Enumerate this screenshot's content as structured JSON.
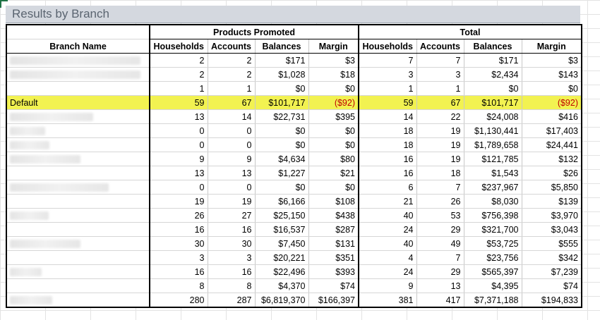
{
  "title": "Results by Branch",
  "colors": {
    "highlight": "#f2f251",
    "negative": "#c00000",
    "title_bar": "#d4d8df",
    "title_text": "#5a6470"
  },
  "group_headers": {
    "promoted": "Products Promoted",
    "total": "Total"
  },
  "column_headers": {
    "branch": "Branch Name",
    "households": "Households",
    "accounts": "Accounts",
    "balances": "Balances",
    "margin": "Margin"
  },
  "rows": [
    {
      "name": "",
      "p_households": "2",
      "p_accounts": "2",
      "p_balances": "$171",
      "p_margin": "$3",
      "t_households": "7",
      "t_accounts": "7",
      "t_balances": "$171",
      "t_margin": "$3"
    },
    {
      "name": "",
      "p_households": "2",
      "p_accounts": "2",
      "p_balances": "$1,028",
      "p_margin": "$18",
      "t_households": "3",
      "t_accounts": "3",
      "t_balances": "$2,434",
      "t_margin": "$143"
    },
    {
      "name": "",
      "p_households": "1",
      "p_accounts": "1",
      "p_balances": "$0",
      "p_margin": "$0",
      "t_households": "1",
      "t_accounts": "1",
      "t_balances": "$0",
      "t_margin": "$0"
    },
    {
      "name": "Default",
      "highlight": true,
      "p_households": "59",
      "p_accounts": "67",
      "p_balances": "$101,717",
      "p_margin": "($92)",
      "p_margin_neg": true,
      "t_households": "59",
      "t_accounts": "67",
      "t_balances": "$101,717",
      "t_margin": "($92)",
      "t_margin_neg": true
    },
    {
      "name": "",
      "p_households": "13",
      "p_accounts": "14",
      "p_balances": "$22,731",
      "p_margin": "$395",
      "t_households": "14",
      "t_accounts": "22",
      "t_balances": "$24,008",
      "t_margin": "$416"
    },
    {
      "name": "",
      "p_households": "0",
      "p_accounts": "0",
      "p_balances": "$0",
      "p_margin": "$0",
      "t_households": "18",
      "t_accounts": "19",
      "t_balances": "$1,130,441",
      "t_margin": "$17,403"
    },
    {
      "name": "",
      "p_households": "0",
      "p_accounts": "0",
      "p_balances": "$0",
      "p_margin": "$0",
      "t_households": "18",
      "t_accounts": "19",
      "t_balances": "$1,789,658",
      "t_margin": "$24,441"
    },
    {
      "name": "",
      "p_households": "9",
      "p_accounts": "9",
      "p_balances": "$4,634",
      "p_margin": "$80",
      "t_households": "16",
      "t_accounts": "19",
      "t_balances": "$121,785",
      "t_margin": "$132"
    },
    {
      "name": "",
      "p_households": "13",
      "p_accounts": "13",
      "p_balances": "$1,227",
      "p_margin": "$21",
      "t_households": "16",
      "t_accounts": "18",
      "t_balances": "$1,543",
      "t_margin": "$26"
    },
    {
      "name": "",
      "p_households": "0",
      "p_accounts": "0",
      "p_balances": "$0",
      "p_margin": "$0",
      "t_households": "6",
      "t_accounts": "7",
      "t_balances": "$237,967",
      "t_margin": "$5,850"
    },
    {
      "name": "",
      "p_households": "19",
      "p_accounts": "19",
      "p_balances": "$6,166",
      "p_margin": "$108",
      "t_households": "21",
      "t_accounts": "26",
      "t_balances": "$8,030",
      "t_margin": "$139"
    },
    {
      "name": "",
      "p_households": "26",
      "p_accounts": "27",
      "p_balances": "$25,150",
      "p_margin": "$438",
      "t_households": "40",
      "t_accounts": "53",
      "t_balances": "$756,398",
      "t_margin": "$3,970"
    },
    {
      "name": "",
      "p_households": "16",
      "p_accounts": "16",
      "p_balances": "$16,537",
      "p_margin": "$287",
      "t_households": "24",
      "t_accounts": "29",
      "t_balances": "$321,700",
      "t_margin": "$3,043"
    },
    {
      "name": "",
      "p_households": "30",
      "p_accounts": "30",
      "p_balances": "$7,450",
      "p_margin": "$131",
      "t_households": "40",
      "t_accounts": "49",
      "t_balances": "$53,725",
      "t_margin": "$555"
    },
    {
      "name": "",
      "p_households": "3",
      "p_accounts": "3",
      "p_balances": "$20,221",
      "p_margin": "$351",
      "t_households": "4",
      "t_accounts": "7",
      "t_balances": "$23,756",
      "t_margin": "$342"
    },
    {
      "name": "",
      "p_households": "16",
      "p_accounts": "16",
      "p_balances": "$22,496",
      "p_margin": "$393",
      "t_households": "24",
      "t_accounts": "29",
      "t_balances": "$565,397",
      "t_margin": "$7,239"
    },
    {
      "name": "",
      "p_households": "8",
      "p_accounts": "8",
      "p_balances": "$4,370",
      "p_margin": "$74",
      "t_households": "9",
      "t_accounts": "13",
      "t_balances": "$4,395",
      "t_margin": "$74"
    },
    {
      "name": "",
      "p_households": "280",
      "p_accounts": "287",
      "p_balances": "$6,819,370",
      "p_margin": "$166,397",
      "t_households": "381",
      "t_accounts": "417",
      "t_balances": "$7,371,188",
      "t_margin": "$194,833"
    }
  ]
}
